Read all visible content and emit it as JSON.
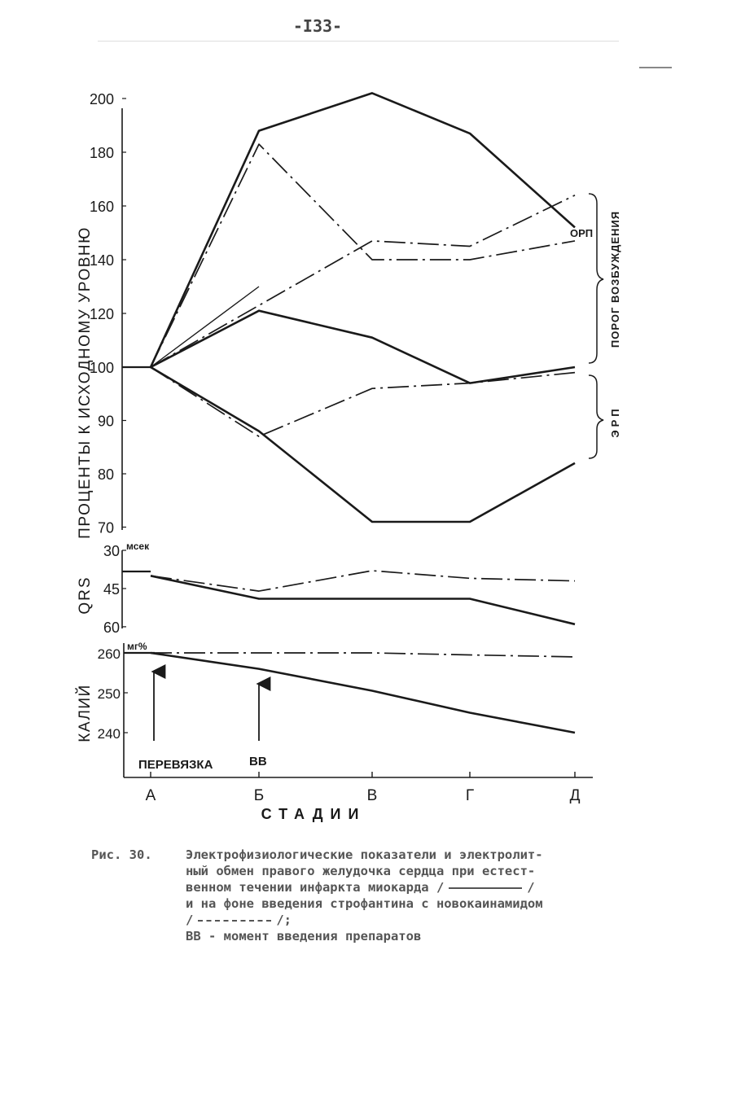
{
  "page_number": "-I33-",
  "caption": {
    "label": "Рис. 30.",
    "line1": "Электрофизиологические показатели и электролит-",
    "line2": "ный обмен правого желудочка сердца при естест-",
    "line3": "венном течении инфаркта миокарда /",
    "line3_end": "/",
    "line4": "и на фоне введения строфантина с новокаинамидом",
    "line5_start": "/",
    "line5_end": "/;",
    "line6": "ВВ - момент введения препаратов"
  },
  "chart_data": [
    {
      "type": "line",
      "ylabel": "ПРОЦЕНТЫ К ИСХОДНОМУ УРОВНЮ",
      "xlabel": "СТАДИИ",
      "categories": [
        "А",
        "Б",
        "В",
        "Г",
        "Д"
      ],
      "yticks": [
        "200",
        "180",
        "160",
        "140",
        "120",
        "100",
        "90",
        "80",
        "70"
      ],
      "scale": "axis break at 100: 20-unit steps above, 10-unit steps below",
      "series": [
        {
          "style": "solid",
          "values": [
            100,
            188,
            202,
            187,
            152
          ]
        },
        {
          "style": "dash-dot",
          "values": [
            100,
            183,
            140,
            140,
            147
          ]
        },
        {
          "style": "solid-thin",
          "values": [
            100,
            130,
            null,
            null,
            null
          ]
        },
        {
          "style": "dash-dot",
          "values": [
            100,
            null,
            147,
            145,
            164
          ]
        },
        {
          "style": "solid",
          "values": [
            100,
            121,
            111,
            97,
            100
          ]
        },
        {
          "style": "dash-dot",
          "values": [
            100,
            87,
            96,
            97,
            99
          ]
        },
        {
          "style": "solid",
          "values": [
            100,
            88,
            71,
            71,
            82
          ]
        }
      ],
      "annotations": [
        {
          "text": "ОРП"
        },
        {
          "text": "ПОРОГ ВОЗБУЖДЕНИЯ"
        },
        {
          "text": "ЭРП"
        }
      ]
    },
    {
      "type": "line",
      "ylabel": "QRS",
      "unit": "мсек",
      "categories": [
        "А",
        "Б",
        "В",
        "Г",
        "Д"
      ],
      "yticks": [
        "30",
        "45",
        "60"
      ],
      "inverted": true,
      "series": [
        {
          "style": "solid",
          "values": [
            40,
            49,
            49,
            49,
            59
          ]
        },
        {
          "style": "dash-dot",
          "values": [
            40,
            46,
            38,
            41,
            42
          ]
        }
      ]
    },
    {
      "type": "line",
      "ylabel": "КАЛИЙ",
      "unit": "мг%",
      "categories": [
        "А",
        "Б",
        "В",
        "Г",
        "Д"
      ],
      "yticks": [
        "260",
        "250",
        "240"
      ],
      "series": [
        {
          "style": "solid",
          "values": [
            260,
            256,
            250.5,
            245,
            240
          ]
        },
        {
          "style": "dash-dot",
          "values": [
            260,
            260,
            260,
            259.5,
            259
          ]
        }
      ],
      "annotations": [
        {
          "text": "ПЕРЕВЯЗКА"
        },
        {
          "text": "ВВ"
        }
      ]
    }
  ]
}
